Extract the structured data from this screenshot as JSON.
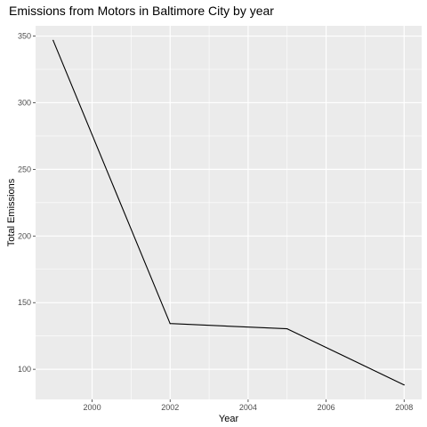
{
  "chart_data": {
    "type": "line",
    "title": "Emissions from Motors in Baltimore City by year",
    "xlabel": "Year",
    "ylabel": "Total Emissions",
    "x": [
      1999,
      2002,
      2005,
      2008
    ],
    "series": [
      {
        "values": [
          346.8,
          134.3,
          130.4,
          88.3
        ]
      }
    ],
    "xlim": [
      1998.55,
      2008.45
    ],
    "ylim": [
      77.4,
      357.7
    ],
    "xticks": [
      2000,
      2002,
      2004,
      2006,
      2008
    ],
    "yticks": [
      100,
      150,
      200,
      250,
      300,
      350
    ],
    "grid": true,
    "legend": "none",
    "colors": {
      "panel": "#ebebeb",
      "grid": "#ffffff",
      "line": "#000000",
      "tick_text": "#4d4d4d"
    }
  }
}
